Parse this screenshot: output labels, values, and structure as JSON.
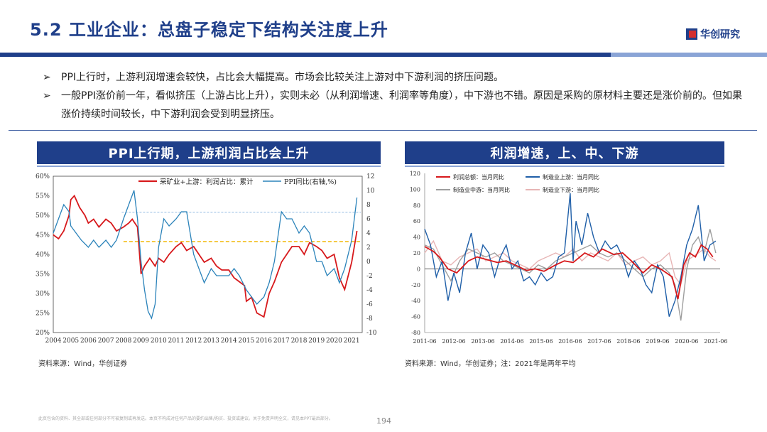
{
  "header": {
    "title": "5.2 工业企业：总盘子稳定下结构关注度上升",
    "logo_text": "华创研究"
  },
  "bullets": [
    {
      "mark": "➢",
      "text": "PPI上行时，上游利润增速会较快，占比会大幅提高。市场会比较关注上游对中下游利润的挤压问题。"
    },
    {
      "mark": "➢",
      "text": "一般PPI涨价前一年，看似挤压（上游占比上升），实则未必（从利润增速、利润率等角度），中下游也不错。原因是采购的原材料主要还是涨价前的。但如果涨价持续时间较长，中下游利润会受到明显挤压。"
    }
  ],
  "panels": {
    "left_title": "PPI上行期，上游利润占比会上升",
    "right_title": "利润增速，上、中、下游",
    "left_source": "资料来源：Wind，华创证券",
    "right_source": "资料来源：Wind，华创证券；注：2021年是两年平均"
  },
  "footer": {
    "disclaimer": "此页包含的资料、其全部或任何部分不可被复制或再发送。本页不构成对任何产品的要约出售/购买、投资或建议。关于免责声明全文，请见本PPT最后部分。",
    "page_number": "194"
  },
  "chart_data": [
    {
      "type": "line",
      "x_ticks": [
        "2004",
        "2005",
        "2006",
        "2007",
        "2008",
        "2009",
        "2010",
        "2011",
        "2012",
        "2013",
        "2014",
        "2015",
        "2016",
        "2017",
        "2018",
        "2019",
        "2020",
        "2021"
      ],
      "y_left_ticks": [
        "60%",
        "55%",
        "50%",
        "45%",
        "40%",
        "35%",
        "30%",
        "25%",
        "20%"
      ],
      "y_right_ticks": [
        "12",
        "10",
        "8",
        "6",
        "4",
        "2",
        "0",
        "-2",
        "-4",
        "-6",
        "-8",
        "-10"
      ],
      "ylim_left": [
        20,
        60
      ],
      "ylim_right": [
        -10,
        12
      ],
      "colors": {
        "upstream_share": "#d7191c",
        "ppi": "#2b83ba",
        "ref_dashed": "#f2b705",
        "ref_dotted": "#a8c8e8"
      },
      "series": [
        {
          "name": "采矿业+上游：利润占比：累计",
          "axis": "left",
          "x": [
            2004,
            2004.3,
            2004.6,
            2004.9,
            2005.0,
            2005.2,
            2005.5,
            2005.8,
            2006.0,
            2006.3,
            2006.6,
            2007.0,
            2007.3,
            2007.6,
            2008.0,
            2008.3,
            2008.5,
            2008.8,
            2009.0,
            2009.2,
            2009.5,
            2009.8,
            2010.0,
            2010.3,
            2010.6,
            2011.0,
            2011.3,
            2011.6,
            2012.0,
            2012.3,
            2012.6,
            2013.0,
            2013.3,
            2013.6,
            2014.0,
            2014.3,
            2014.6,
            2014.9,
            2015.0,
            2015.3,
            2015.6,
            2016.0,
            2016.3,
            2016.6,
            2017.0,
            2017.3,
            2017.6,
            2018.0,
            2018.3,
            2018.6,
            2019.0,
            2019.3,
            2019.6,
            2020.0,
            2020.3,
            2020.6,
            2021.0,
            2021.3
          ],
          "values": [
            45,
            44,
            46,
            50,
            54,
            55,
            52,
            50,
            48,
            49,
            47,
            49,
            48,
            46,
            47,
            48,
            49,
            47,
            35,
            37,
            39,
            37,
            39,
            38,
            40,
            42,
            43,
            41,
            42,
            40,
            38,
            39,
            37,
            36,
            36,
            34,
            33,
            32,
            28,
            29,
            25,
            24,
            30,
            33,
            38,
            40,
            42,
            42,
            40,
            43,
            42,
            41,
            39,
            40,
            34,
            31,
            38,
            46
          ]
        },
        {
          "name": "PPI同比(右轴,%)",
          "axis": "right",
          "x": [
            2004,
            2004.3,
            2004.6,
            2004.9,
            2005.0,
            2005.3,
            2005.6,
            2006.0,
            2006.3,
            2006.6,
            2007.0,
            2007.3,
            2007.6,
            2008.0,
            2008.3,
            2008.6,
            2008.8,
            2009.0,
            2009.2,
            2009.4,
            2009.6,
            2009.8,
            2010.0,
            2010.3,
            2010.6,
            2011.0,
            2011.3,
            2011.6,
            2012.0,
            2012.3,
            2012.6,
            2013.0,
            2013.3,
            2013.6,
            2014.0,
            2014.3,
            2014.6,
            2015.0,
            2015.3,
            2015.6,
            2016.0,
            2016.3,
            2016.6,
            2017.0,
            2017.3,
            2017.6,
            2018.0,
            2018.3,
            2018.6,
            2019.0,
            2019.3,
            2019.6,
            2020.0,
            2020.3,
            2020.6,
            2021.0,
            2021.3
          ],
          "values": [
            4,
            6,
            8,
            7,
            5,
            4,
            3,
            2,
            3,
            2,
            3,
            2,
            3,
            6,
            8,
            10,
            6,
            0,
            -4,
            -7,
            -8,
            -6,
            2,
            6,
            5,
            6,
            7,
            7,
            1,
            -1,
            -3,
            -1,
            -2,
            -2,
            -2,
            -1,
            -2,
            -4,
            -5,
            -6,
            -5,
            -3,
            0,
            7,
            6,
            6,
            4,
            5,
            4,
            0,
            0,
            -2,
            -1,
            -3,
            -1,
            3,
            9
          ]
        }
      ],
      "reference_lines": [
        {
          "axis": "right",
          "value": 2.8,
          "style": "dashed"
        },
        {
          "axis": "left",
          "value": 50.8,
          "style": "dotted"
        }
      ]
    },
    {
      "type": "line",
      "x_ticks": [
        "2011-06",
        "2012-06",
        "2013-06",
        "2014-06",
        "2015-06",
        "2016-06",
        "2017-06",
        "2018-06",
        "2019-06",
        "2020-06",
        "2021-06"
      ],
      "y_ticks": [
        "120",
        "100",
        "80",
        "60",
        "40",
        "20",
        "0",
        "-20",
        "-40",
        "-60",
        "-80"
      ],
      "ylim": [
        -80,
        120
      ],
      "colors": {
        "total": "#d7191c",
        "upstream": "#1f5fa8",
        "midstream": "#9e9e9e",
        "downstream": "#e7b5b5"
      },
      "series": [
        {
          "name": "利润总额：当月同比",
          "x": [
            2011.5,
            2011.8,
            2012.0,
            2012.3,
            2012.6,
            2013.0,
            2013.3,
            2013.6,
            2014.0,
            2014.3,
            2014.6,
            2015.0,
            2015.3,
            2015.6,
            2016.0,
            2016.3,
            2016.6,
            2017.0,
            2017.3,
            2017.6,
            2018.0,
            2018.3,
            2018.6,
            2019.0,
            2019.3,
            2019.6,
            2020.0,
            2020.2,
            2020.4,
            2020.6,
            2020.8,
            2021.0,
            2021.2,
            2021.4
          ],
          "values": [
            28,
            22,
            15,
            0,
            -5,
            10,
            15,
            12,
            8,
            10,
            5,
            -2,
            0,
            -3,
            5,
            10,
            8,
            20,
            15,
            25,
            18,
            20,
            10,
            -5,
            5,
            0,
            -10,
            -38,
            5,
            20,
            15,
            30,
            25,
            15
          ]
        },
        {
          "name": "制造业上游：当月同比",
          "x": [
            2011.5,
            2011.7,
            2011.9,
            2012.1,
            2012.3,
            2012.5,
            2012.7,
            2012.9,
            2013.1,
            2013.3,
            2013.5,
            2013.7,
            2013.9,
            2014.1,
            2014.3,
            2014.5,
            2014.7,
            2014.9,
            2015.1,
            2015.3,
            2015.5,
            2015.7,
            2015.9,
            2016.1,
            2016.3,
            2016.5,
            2016.6,
            2016.7,
            2016.9,
            2017.1,
            2017.3,
            2017.5,
            2017.7,
            2017.9,
            2018.1,
            2018.3,
            2018.5,
            2018.7,
            2018.9,
            2019.1,
            2019.3,
            2019.5,
            2019.7,
            2019.9,
            2020.1,
            2020.3,
            2020.5,
            2020.7,
            2020.9,
            2021.1,
            2021.3,
            2021.5
          ],
          "values": [
            50,
            30,
            -10,
            10,
            -40,
            -5,
            -30,
            20,
            45,
            0,
            30,
            20,
            -10,
            15,
            30,
            0,
            10,
            -15,
            -10,
            -20,
            -5,
            -15,
            -10,
            15,
            20,
            95,
            10,
            60,
            30,
            70,
            40,
            20,
            35,
            25,
            30,
            15,
            -10,
            10,
            0,
            -20,
            -30,
            5,
            -10,
            -60,
            -40,
            -10,
            30,
            50,
            80,
            10,
            30,
            35
          ]
        },
        {
          "name": "制造业中游：当月同比",
          "x": [
            2011.5,
            2011.8,
            2012.1,
            2012.4,
            2012.7,
            2013.0,
            2013.3,
            2013.6,
            2013.9,
            2014.2,
            2014.5,
            2014.8,
            2015.1,
            2015.4,
            2015.7,
            2016.0,
            2016.3,
            2016.6,
            2016.9,
            2017.2,
            2017.5,
            2017.8,
            2018.1,
            2018.4,
            2018.7,
            2019.0,
            2019.3,
            2019.6,
            2019.9,
            2020.1,
            2020.3,
            2020.5,
            2020.7,
            2020.9,
            2021.1,
            2021.3,
            2021.5
          ],
          "values": [
            30,
            25,
            5,
            -15,
            10,
            25,
            20,
            15,
            20,
            10,
            5,
            0,
            -5,
            5,
            0,
            10,
            15,
            20,
            25,
            30,
            20,
            15,
            20,
            10,
            0,
            -10,
            0,
            5,
            -5,
            -20,
            -65,
            0,
            30,
            40,
            20,
            50,
            20
          ]
        },
        {
          "name": "制造业下游：当月同比",
          "x": [
            2011.5,
            2011.8,
            2012.1,
            2012.4,
            2012.7,
            2013.0,
            2013.3,
            2013.6,
            2013.9,
            2014.2,
            2014.5,
            2014.8,
            2015.1,
            2015.4,
            2015.7,
            2016.0,
            2016.3,
            2016.6,
            2016.9,
            2017.2,
            2017.5,
            2017.8,
            2018.1,
            2018.4,
            2018.7,
            2019.0,
            2019.3,
            2019.6,
            2019.9,
            2020.1,
            2020.3,
            2020.5,
            2020.7,
            2020.9,
            2021.1,
            2021.3,
            2021.5
          ],
          "values": [
            20,
            35,
            10,
            5,
            15,
            20,
            25,
            10,
            15,
            20,
            10,
            5,
            0,
            10,
            15,
            20,
            15,
            25,
            10,
            20,
            15,
            10,
            20,
            5,
            10,
            15,
            5,
            10,
            20,
            -10,
            -20,
            10,
            15,
            20,
            25,
            15,
            10
          ]
        }
      ]
    }
  ]
}
